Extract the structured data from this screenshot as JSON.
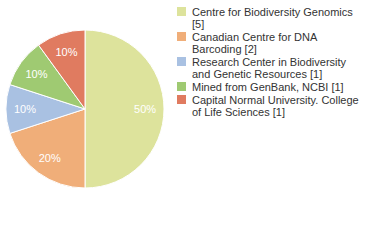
{
  "chart_data": {
    "type": "pie",
    "categories": [
      "Centre for Biodiversity Genomics [5]",
      "Canadian Centre for DNA Barcoding [2]",
      "Research Center in Biodiversity and Genetic Resources [1]",
      "Mined from GenBank, NCBI [1]",
      "Capital Normal University. College of Life Sciences [1]"
    ],
    "values": [
      50,
      20,
      10,
      10,
      10
    ],
    "value_labels": [
      "50%",
      "20%",
      "10%",
      "10%",
      "10%"
    ],
    "colors": [
      "#dde39c",
      "#f0ae79",
      "#a9c1e2",
      "#9fca72",
      "#e07b60"
    ],
    "data_labels": true,
    "legend": "top-right"
  }
}
